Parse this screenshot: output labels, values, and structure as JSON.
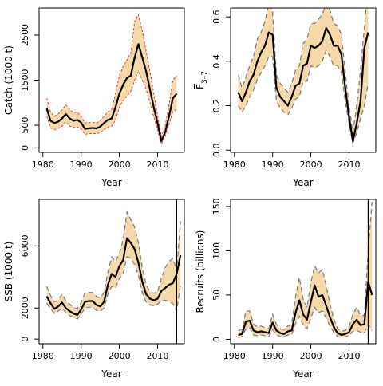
{
  "chart_data": [
    {
      "id": "catch",
      "type": "line",
      "title": "",
      "xlabel": "Year",
      "ylabel": "Catch (1000 t)",
      "xlim": [
        1979,
        2017
      ],
      "ylim": [
        -100,
        3100
      ],
      "xticks": [
        1980,
        1990,
        2000,
        2010
      ],
      "yticks": [
        0,
        500,
        1500,
        2500
      ],
      "band_color": "#f5d9a8",
      "band_style": "red-dashed",
      "vline": null,
      "x": [
        1981,
        1982,
        1983,
        1984,
        1985,
        1986,
        1987,
        1988,
        1989,
        1990,
        1991,
        1992,
        1993,
        1994,
        1995,
        1996,
        1997,
        1998,
        1999,
        2000,
        2001,
        2002,
        2003,
        2004,
        2005,
        2006,
        2007,
        2008,
        2009,
        2010,
        2011,
        2012,
        2013,
        2014,
        2015
      ],
      "series": [
        {
          "role": "estimate",
          "color": "#000000",
          "values": [
            870,
            600,
            550,
            580,
            650,
            750,
            650,
            600,
            620,
            560,
            420,
            430,
            440,
            430,
            470,
            550,
            620,
            650,
            900,
            1200,
            1400,
            1550,
            1600,
            2000,
            2300,
            2000,
            1700,
            1300,
            900,
            550,
            150,
            350,
            700,
            1100,
            1200
          ]
        },
        {
          "role": "upper",
          "color": "#e03030",
          "values": [
            1100,
            800,
            700,
            750,
            850,
            950,
            850,
            780,
            790,
            700,
            550,
            560,
            560,
            550,
            600,
            700,
            800,
            850,
            1200,
            1600,
            1800,
            1950,
            2100,
            2800,
            2950,
            2600,
            2150,
            1700,
            1200,
            720,
            250,
            500,
            950,
            1500,
            1600
          ]
        },
        {
          "role": "lower",
          "color": "#e03030",
          "values": [
            700,
            450,
            400,
            430,
            480,
            580,
            480,
            450,
            460,
            420,
            300,
            310,
            320,
            310,
            340,
            400,
            460,
            480,
            620,
            900,
            1050,
            1150,
            1250,
            1500,
            1700,
            1500,
            1300,
            1000,
            680,
            400,
            80,
            250,
            520,
            800,
            850
          ]
        }
      ]
    },
    {
      "id": "fbar",
      "type": "line",
      "title": "",
      "xlabel": "Year",
      "ylabel": "F̅ 3–7",
      "xlim": [
        1979,
        2017
      ],
      "ylim": [
        -0.01,
        0.64
      ],
      "xticks": [
        1980,
        1990,
        2000,
        2010
      ],
      "yticks": [
        0.0,
        0.2,
        0.4,
        0.6
      ],
      "band_color": "#f5d9a8",
      "band_style": "grey-dashed",
      "vline": null,
      "x": [
        1981,
        1982,
        1983,
        1984,
        1985,
        1986,
        1987,
        1988,
        1989,
        1990,
        1991,
        1992,
        1993,
        1994,
        1995,
        1996,
        1997,
        1998,
        1999,
        2000,
        2001,
        2002,
        2003,
        2004,
        2005,
        2006,
        2007,
        2008,
        2009,
        2010,
        2011,
        2012,
        2013,
        2014,
        2015
      ],
      "series": [
        {
          "role": "estimate",
          "color": "#000000",
          "values": [
            0.26,
            0.22,
            0.26,
            0.31,
            0.34,
            0.4,
            0.44,
            0.47,
            0.53,
            0.52,
            0.28,
            0.24,
            0.22,
            0.2,
            0.24,
            0.29,
            0.3,
            0.38,
            0.39,
            0.47,
            0.46,
            0.47,
            0.49,
            0.55,
            0.52,
            0.47,
            0.47,
            0.43,
            0.28,
            0.15,
            0.04,
            0.12,
            0.22,
            0.46,
            0.53
          ]
        },
        {
          "role": "upper",
          "color": "#808080",
          "values": [
            0.34,
            0.28,
            0.33,
            0.38,
            0.42,
            0.5,
            0.53,
            0.58,
            0.66,
            0.62,
            0.34,
            0.3,
            0.28,
            0.26,
            0.3,
            0.36,
            0.38,
            0.48,
            0.5,
            0.57,
            0.57,
            0.59,
            0.61,
            0.66,
            0.63,
            0.57,
            0.56,
            0.52,
            0.35,
            0.2,
            0.08,
            0.2,
            0.36,
            0.55,
            0.75
          ]
        },
        {
          "role": "lower",
          "color": "#808080",
          "values": [
            0.2,
            0.17,
            0.2,
            0.24,
            0.27,
            0.32,
            0.35,
            0.38,
            0.42,
            0.42,
            0.22,
            0.19,
            0.17,
            0.16,
            0.19,
            0.23,
            0.24,
            0.31,
            0.31,
            0.38,
            0.37,
            0.38,
            0.4,
            0.45,
            0.42,
            0.38,
            0.38,
            0.35,
            0.22,
            0.12,
            0.03,
            0.08,
            0.14,
            0.2,
            0.3
          ]
        }
      ]
    },
    {
      "id": "ssb",
      "type": "line",
      "title": "",
      "xlabel": "Year",
      "ylabel": "SSB (1000 t)",
      "xlim": [
        1979,
        2017
      ],
      "ylim": [
        -300,
        9000
      ],
      "xticks": [
        1980,
        1990,
        2000,
        2010
      ],
      "yticks": [
        0,
        2000,
        6000
      ],
      "band_color": "#f5d9a8",
      "band_style": "grey-dashed",
      "vline": 2015,
      "x": [
        1981,
        1982,
        1983,
        1984,
        1985,
        1986,
        1987,
        1988,
        1989,
        1990,
        1991,
        1992,
        1993,
        1994,
        1995,
        1996,
        1997,
        1998,
        1999,
        2000,
        2001,
        2002,
        2003,
        2004,
        2005,
        2006,
        2007,
        2008,
        2009,
        2010,
        2011,
        2012,
        2013,
        2014,
        2015,
        2016
      ],
      "series": [
        {
          "role": "estimate",
          "color": "#000000",
          "values": [
            2750,
            2300,
            1950,
            2100,
            2350,
            2000,
            1800,
            1650,
            1550,
            1900,
            2400,
            2450,
            2450,
            2200,
            2100,
            2400,
            3500,
            4200,
            4000,
            4700,
            5100,
            6500,
            6200,
            5800,
            4900,
            3700,
            2900,
            2600,
            2500,
            2600,
            3100,
            3300,
            3500,
            3600,
            4200,
            5400
          ]
        },
        {
          "role": "upper",
          "color": "#808080",
          "values": [
            3400,
            2800,
            2400,
            2500,
            2900,
            2450,
            2250,
            2050,
            1950,
            2350,
            2950,
            3000,
            3000,
            2750,
            2650,
            3000,
            4300,
            5300,
            5000,
            5500,
            6400,
            8200,
            7700,
            7200,
            6200,
            4600,
            3500,
            3050,
            2950,
            3050,
            3900,
            4600,
            5000,
            5200,
            4400,
            7600
          ]
        },
        {
          "role": "lower",
          "color": "#808080",
          "values": [
            2300,
            1950,
            1650,
            1800,
            2000,
            1700,
            1500,
            1400,
            1300,
            1600,
            2000,
            2050,
            2050,
            1850,
            1800,
            2000,
            2900,
            3400,
            3300,
            3900,
            4200,
            5300,
            5200,
            4800,
            4100,
            3000,
            2400,
            2200,
            2150,
            2250,
            2500,
            2500,
            2400,
            2300,
            1800,
            3500
          ]
        }
      ]
    },
    {
      "id": "recruits",
      "type": "line",
      "title": "",
      "xlabel": "Year",
      "ylabel": "Recruits (billions)",
      "xlim": [
        1979,
        2017
      ],
      "ylim": [
        -5,
        158
      ],
      "xticks": [
        1980,
        1990,
        2000,
        2010
      ],
      "yticks": [
        0,
        50,
        100,
        150
      ],
      "band_color": "#f5d9a8",
      "band_style": "grey-dashed",
      "vline": 2015,
      "x": [
        1981,
        1982,
        1983,
        1984,
        1985,
        1986,
        1987,
        1988,
        1989,
        1990,
        1991,
        1992,
        1993,
        1994,
        1995,
        1996,
        1997,
        1998,
        1999,
        2000,
        2001,
        2002,
        2003,
        2004,
        2005,
        2006,
        2007,
        2008,
        2009,
        2010,
        2011,
        2012,
        2013,
        2014,
        2015,
        2016
      ],
      "series": [
        {
          "role": "estimate",
          "color": "#000000",
          "values": [
            5,
            6,
            20,
            21,
            10,
            8,
            9,
            8,
            7,
            19,
            10,
            7,
            6,
            9,
            10,
            30,
            44,
            28,
            22,
            42,
            61,
            48,
            50,
            38,
            25,
            14,
            7,
            5,
            6,
            8,
            17,
            22,
            16,
            17,
            65,
            50
          ]
        },
        {
          "role": "upper",
          "color": "#808080",
          "values": [
            10,
            11,
            32,
            32,
            17,
            14,
            15,
            13,
            12,
            28,
            17,
            12,
            11,
            15,
            17,
            48,
            70,
            45,
            36,
            64,
            83,
            75,
            79,
            61,
            40,
            23,
            12,
            9,
            10,
            14,
            28,
            36,
            27,
            27,
            100,
            155
          ]
        },
        {
          "role": "lower",
          "color": "#808080",
          "values": [
            2,
            3,
            12,
            13,
            5,
            4,
            5,
            4,
            3,
            11,
            5,
            3,
            3,
            5,
            5,
            18,
            26,
            16,
            12,
            24,
            36,
            30,
            32,
            24,
            15,
            8,
            3,
            2,
            3,
            4,
            9,
            10,
            8,
            7,
            17,
            10
          ]
        }
      ]
    }
  ]
}
